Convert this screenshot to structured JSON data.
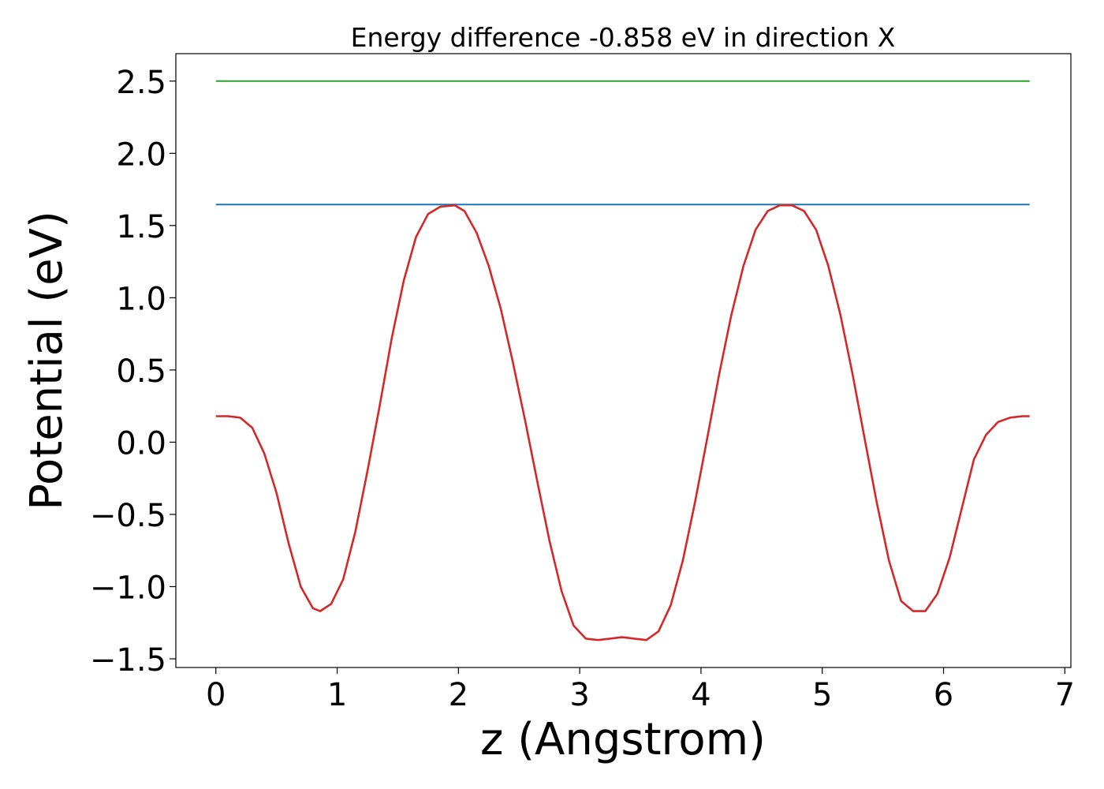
{
  "chart_data": {
    "type": "line",
    "title": "Energy difference -0.858 eV in direction X",
    "xlabel": "z (Angstrom)",
    "ylabel": "Potential (eV)",
    "xlim": [
      -0.33,
      7.05
    ],
    "ylim": [
      -1.56,
      2.69
    ],
    "xticks": [
      0,
      1,
      2,
      3,
      4,
      5,
      6,
      7
    ],
    "xtick_labels": [
      "0",
      "1",
      "2",
      "3",
      "4",
      "5",
      "6",
      "7"
    ],
    "yticks": [
      -1.5,
      -1.0,
      -0.5,
      0.0,
      0.5,
      1.0,
      1.5,
      2.0,
      2.5
    ],
    "ytick_labels": [
      "−1.5",
      "−1.0",
      "−0.5",
      "0.0",
      "0.5",
      "1.0",
      "1.5",
      "2.0",
      "2.5"
    ],
    "grid": false,
    "legend": "none",
    "series": [
      {
        "color": "#2ca02c",
        "x": [
          0,
          6.71
        ],
        "y": [
          2.5,
          2.5
        ]
      },
      {
        "color": "#1f77b4",
        "x": [
          0,
          6.71
        ],
        "y": [
          1.645,
          1.645
        ]
      },
      {
        "color": "#d62728",
        "x": [
          0.0,
          0.1,
          0.2,
          0.3,
          0.4,
          0.5,
          0.6,
          0.7,
          0.8,
          0.86,
          0.95,
          1.05,
          1.15,
          1.25,
          1.35,
          1.45,
          1.55,
          1.65,
          1.75,
          1.85,
          1.97,
          2.05,
          2.15,
          2.25,
          2.35,
          2.45,
          2.55,
          2.65,
          2.75,
          2.85,
          2.95,
          3.05,
          3.15,
          3.25,
          3.35,
          3.45,
          3.55,
          3.65,
          3.75,
          3.85,
          3.95,
          4.05,
          4.15,
          4.25,
          4.35,
          4.45,
          4.55,
          4.65,
          4.75,
          4.85,
          4.95,
          5.05,
          5.15,
          5.25,
          5.35,
          5.45,
          5.55,
          5.65,
          5.75,
          5.85,
          5.95,
          6.05,
          6.15,
          6.25,
          6.35,
          6.45,
          6.55,
          6.65,
          6.71
        ],
        "y": [
          0.18,
          0.18,
          0.17,
          0.1,
          -0.08,
          -0.35,
          -0.7,
          -1.0,
          -1.15,
          -1.17,
          -1.12,
          -0.95,
          -0.62,
          -0.2,
          0.25,
          0.72,
          1.12,
          1.42,
          1.58,
          1.63,
          1.64,
          1.6,
          1.45,
          1.22,
          0.92,
          0.55,
          0.15,
          -0.27,
          -0.68,
          -1.03,
          -1.27,
          -1.36,
          -1.37,
          -1.36,
          -1.35,
          -1.36,
          -1.37,
          -1.31,
          -1.13,
          -0.82,
          -0.42,
          0.02,
          0.47,
          0.88,
          1.22,
          1.47,
          1.6,
          1.64,
          1.64,
          1.6,
          1.47,
          1.22,
          0.88,
          0.47,
          0.02,
          -0.42,
          -0.82,
          -1.1,
          -1.17,
          -1.17,
          -1.05,
          -0.8,
          -0.46,
          -0.12,
          0.05,
          0.14,
          0.17,
          0.18,
          0.18
        ]
      }
    ]
  }
}
